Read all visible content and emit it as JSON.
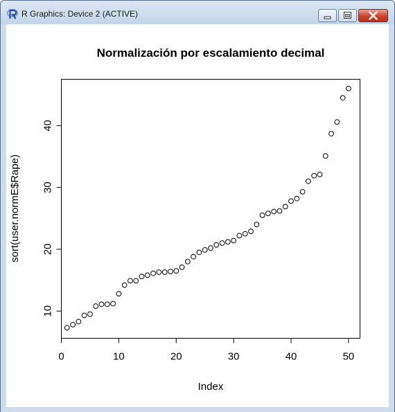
{
  "window": {
    "title": "R Graphics: Device 2 (ACTIVE)",
    "accent_color": "#cfdcec",
    "controls": {
      "minimize": "minimize-icon",
      "maximize": "maximize-icon",
      "close": "close-icon"
    }
  },
  "chart_data": {
    "type": "scatter",
    "title": "Normalización por escalamiento decimal",
    "xlabel": "Index",
    "ylabel": "sort(user.normE$Rape)",
    "xlim": [
      0,
      52
    ],
    "ylim": [
      5.6,
      47.5
    ],
    "x_ticks": [
      0,
      10,
      20,
      30,
      40,
      50
    ],
    "y_ticks": [
      10,
      20,
      30,
      40
    ],
    "x_tick_labels": [
      "0",
      "10",
      "20",
      "30",
      "40",
      "50"
    ],
    "y_tick_labels": [
      "10",
      "20",
      "30",
      "40"
    ],
    "grid": false,
    "legend": "none",
    "marker": "open-circle",
    "x": [
      1,
      2,
      3,
      4,
      5,
      6,
      7,
      8,
      9,
      10,
      11,
      12,
      13,
      14,
      15,
      16,
      17,
      18,
      19,
      20,
      21,
      22,
      23,
      24,
      25,
      26,
      27,
      28,
      29,
      30,
      31,
      32,
      33,
      34,
      35,
      36,
      37,
      38,
      39,
      40,
      41,
      42,
      43,
      44,
      45,
      46,
      47,
      48,
      49,
      50
    ],
    "y": [
      7.3,
      7.8,
      8.3,
      9.3,
      9.5,
      10.8,
      11.1,
      11.1,
      11.2,
      12.8,
      14.2,
      14.9,
      14.9,
      15.6,
      15.8,
      16.1,
      16.3,
      16.3,
      16.4,
      16.5,
      17.1,
      18.0,
      18.8,
      19.5,
      19.9,
      20.2,
      20.7,
      21.0,
      21.2,
      21.4,
      22.2,
      22.5,
      22.9,
      24.0,
      25.5,
      25.8,
      26.1,
      26.2,
      26.9,
      27.8,
      28.2,
      29.3,
      31.0,
      31.9,
      32.1,
      35.1,
      38.7,
      40.6,
      44.5,
      46.0
    ]
  }
}
